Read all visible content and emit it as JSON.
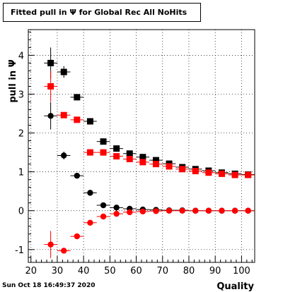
{
  "chart_data": {
    "type": "scatter",
    "title": "Fitted pull in  Ψ  for Global Rec All NoHits",
    "xlabel": "Quality",
    "ylabel": "pull in  Ψ",
    "xlim": [
      19,
      105
    ],
    "ylim": [
      -1.33,
      4.66
    ],
    "xticks": [
      20,
      30,
      40,
      50,
      60,
      70,
      80,
      90,
      100
    ],
    "yticks": [
      -1,
      0,
      1,
      2,
      3,
      4
    ],
    "grid": true,
    "series": [
      {
        "color": "#000000",
        "marker": "square",
        "points": [
          {
            "x": 27.5,
            "y": 3.8,
            "err": 0.4
          },
          {
            "x": 32.5,
            "y": 3.57,
            "err": 0.15
          },
          {
            "x": 37.5,
            "y": 2.92,
            "err": 0.06
          },
          {
            "x": 42.5,
            "y": 2.3,
            "err": 0.03
          },
          {
            "x": 47.5,
            "y": 1.78,
            "err": 0.02
          },
          {
            "x": 52.5,
            "y": 1.6,
            "err": 0.02
          },
          {
            "x": 57.5,
            "y": 1.47,
            "err": 0.02
          },
          {
            "x": 62.5,
            "y": 1.38,
            "err": 0.02
          },
          {
            "x": 67.5,
            "y": 1.3,
            "err": 0.02
          },
          {
            "x": 72.5,
            "y": 1.21,
            "err": 0.02
          },
          {
            "x": 77.5,
            "y": 1.12,
            "err": 0.02
          },
          {
            "x": 82.5,
            "y": 1.07,
            "err": 0.02
          },
          {
            "x": 87.5,
            "y": 1.03,
            "err": 0.02
          },
          {
            "x": 92.5,
            "y": 0.98,
            "err": 0.02
          },
          {
            "x": 97.5,
            "y": 0.95,
            "err": 0.02
          },
          {
            "x": 102.5,
            "y": 0.93,
            "err": 0.02
          }
        ]
      },
      {
        "color": "#ff0000",
        "marker": "square",
        "points": [
          {
            "x": 27.5,
            "y": 3.2,
            "err": 0.4
          },
          {
            "x": 32.5,
            "y": 2.46,
            "err": 0.05
          },
          {
            "x": 37.5,
            "y": 2.34,
            "err": 0.05
          },
          {
            "x": 42.5,
            "y": 1.5,
            "err": 0.03
          },
          {
            "x": 47.5,
            "y": 1.5,
            "err": 0.03
          },
          {
            "x": 52.5,
            "y": 1.4,
            "err": 0.02
          },
          {
            "x": 57.5,
            "y": 1.33,
            "err": 0.02
          },
          {
            "x": 62.5,
            "y": 1.25,
            "err": 0.02
          },
          {
            "x": 67.5,
            "y": 1.2,
            "err": 0.02
          },
          {
            "x": 72.5,
            "y": 1.14,
            "err": 0.02
          },
          {
            "x": 77.5,
            "y": 1.07,
            "err": 0.02
          },
          {
            "x": 82.5,
            "y": 1.02,
            "err": 0.02
          },
          {
            "x": 87.5,
            "y": 0.98,
            "err": 0.02
          },
          {
            "x": 92.5,
            "y": 0.95,
            "err": 0.02
          },
          {
            "x": 97.5,
            "y": 0.92,
            "err": 0.02
          },
          {
            "x": 102.5,
            "y": 0.92,
            "err": 0.02
          }
        ]
      },
      {
        "color": "#000000",
        "marker": "circle",
        "points": [
          {
            "x": 27.5,
            "y": 2.44,
            "err": 0.35
          },
          {
            "x": 32.5,
            "y": 1.42,
            "err": 0.1
          },
          {
            "x": 37.5,
            "y": 0.9,
            "err": 0.04
          },
          {
            "x": 42.5,
            "y": 0.46,
            "err": 0.03
          },
          {
            "x": 47.5,
            "y": 0.14,
            "err": 0.02
          },
          {
            "x": 52.5,
            "y": 0.08,
            "err": 0.02
          },
          {
            "x": 57.5,
            "y": 0.05,
            "err": 0.02
          },
          {
            "x": 62.5,
            "y": 0.03,
            "err": 0.02
          },
          {
            "x": 67.5,
            "y": 0.02,
            "err": 0.02
          },
          {
            "x": 72.5,
            "y": 0.01,
            "err": 0.02
          },
          {
            "x": 77.5,
            "y": 0.01,
            "err": 0.02
          },
          {
            "x": 82.5,
            "y": 0.0,
            "err": 0.02
          },
          {
            "x": 87.5,
            "y": 0.0,
            "err": 0.02
          },
          {
            "x": 92.5,
            "y": 0.0,
            "err": 0.02
          },
          {
            "x": 97.5,
            "y": 0.0,
            "err": 0.02
          },
          {
            "x": 102.5,
            "y": 0.0,
            "err": 0.02
          }
        ]
      },
      {
        "color": "#ff0000",
        "marker": "circle",
        "points": [
          {
            "x": 27.5,
            "y": -0.87,
            "err": 0.35
          },
          {
            "x": 32.5,
            "y": -1.03,
            "err": 0.05
          },
          {
            "x": 37.5,
            "y": -0.66,
            "err": 0.04
          },
          {
            "x": 42.5,
            "y": -0.31,
            "err": 0.03
          },
          {
            "x": 47.5,
            "y": -0.15,
            "err": 0.02
          },
          {
            "x": 52.5,
            "y": -0.08,
            "err": 0.02
          },
          {
            "x": 57.5,
            "y": -0.04,
            "err": 0.02
          },
          {
            "x": 62.5,
            "y": -0.02,
            "err": 0.02
          },
          {
            "x": 67.5,
            "y": -0.01,
            "err": 0.02
          },
          {
            "x": 72.5,
            "y": 0.0,
            "err": 0.02
          },
          {
            "x": 77.5,
            "y": 0.0,
            "err": 0.02
          },
          {
            "x": 82.5,
            "y": 0.0,
            "err": 0.02
          },
          {
            "x": 87.5,
            "y": 0.0,
            "err": 0.02
          },
          {
            "x": 92.5,
            "y": 0.0,
            "err": 0.02
          },
          {
            "x": 97.5,
            "y": 0.0,
            "err": 0.02
          },
          {
            "x": 102.5,
            "y": 0.0,
            "err": 0.02
          }
        ]
      }
    ]
  },
  "footer": {
    "timestamp": "Sun Oct 18 16:49:37 2020"
  }
}
